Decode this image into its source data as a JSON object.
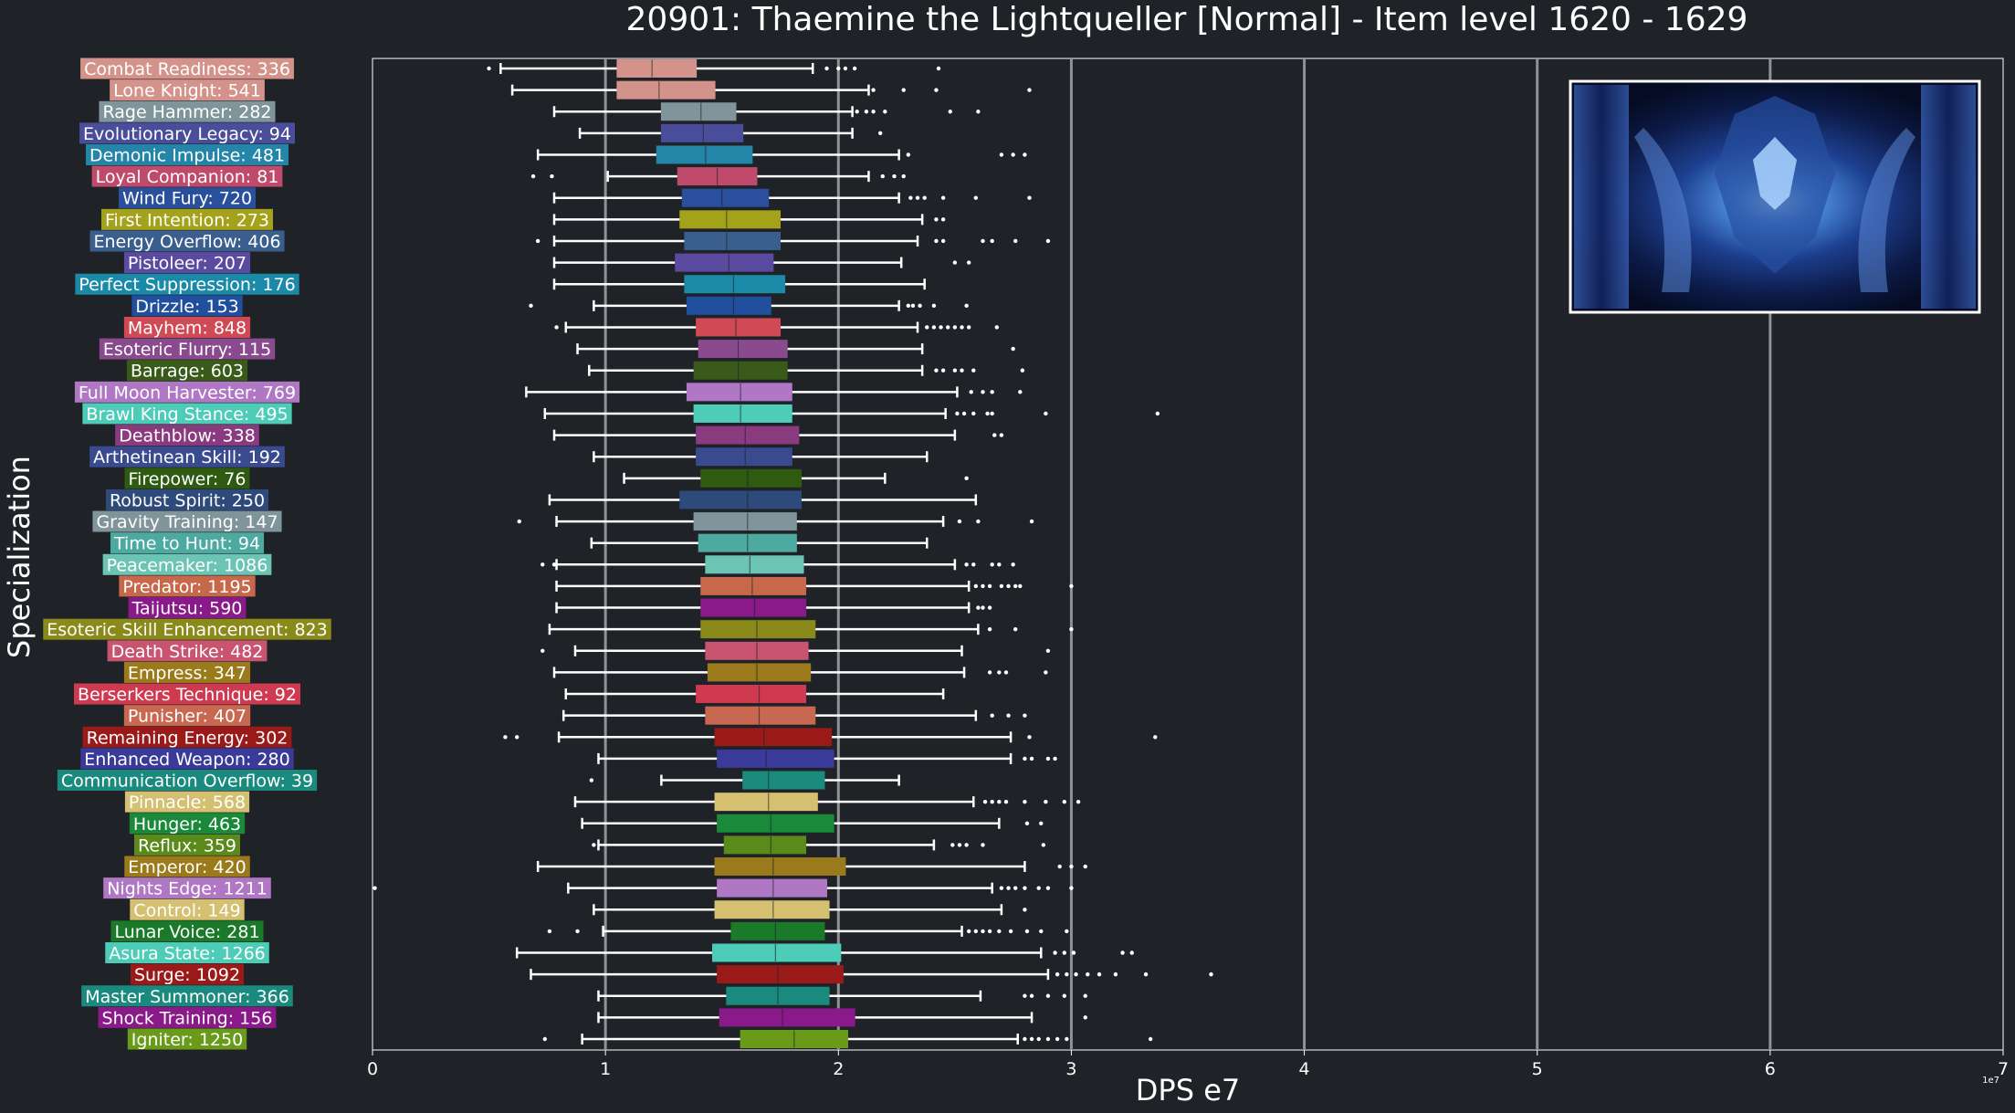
{
  "chart_data": {
    "type": "box",
    "title": "20901: Thaemine the Lightqueller [Normal] - Item level 1620 - 1629",
    "xlabel": "DPS e7",
    "ylabel": "Specialization",
    "x_multiplier_label": "1e7",
    "xlim": [
      0,
      7
    ],
    "xticks": [
      0,
      1,
      2,
      3,
      4,
      5,
      6,
      7
    ],
    "gridlines_x": [
      1,
      2,
      3,
      4,
      5,
      6
    ],
    "grid": "vertical",
    "colors": {
      "background": "#1f2227",
      "grid": "#8f9296",
      "text": "#ffffff",
      "whisker": "#ffffff"
    },
    "inset_image": {
      "description_icon": "boss-portrait-thumbnail",
      "position": "top-right"
    },
    "series": [
      {
        "name": "Combat Readiness",
        "count": 336,
        "label": "Combat Readiness: 336",
        "color": "#d4938a",
        "whislo": 0.55,
        "q1": 1.05,
        "med": 1.2,
        "q3": 1.39,
        "whishi": 1.89,
        "fliers": [
          0.5,
          1.95,
          2.0,
          2.03,
          2.07,
          2.43
        ]
      },
      {
        "name": "Lone Knight",
        "count": 541,
        "label": "Lone Knight: 541",
        "color": "#d4938a",
        "whislo": 0.6,
        "q1": 1.05,
        "med": 1.23,
        "q3": 1.47,
        "whishi": 2.13,
        "fliers": [
          2.15,
          2.28,
          2.42,
          2.82
        ]
      },
      {
        "name": "Rage Hammer",
        "count": 282,
        "label": "Rage Hammer: 282",
        "color": "#7f959b",
        "whislo": 0.78,
        "q1": 1.24,
        "med": 1.41,
        "q3": 1.56,
        "whishi": 2.06,
        "fliers": [
          2.08,
          2.12,
          2.15,
          2.2,
          2.48,
          2.6
        ]
      },
      {
        "name": "Evolutionary Legacy",
        "count": 94,
        "label": "Evolutionary Legacy: 94",
        "color": "#4a4d99",
        "whislo": 0.89,
        "q1": 1.24,
        "med": 1.42,
        "q3": 1.59,
        "whishi": 2.06,
        "fliers": [
          2.18
        ]
      },
      {
        "name": "Demonic Impulse",
        "count": 481,
        "label": "Demonic Impulse: 481",
        "color": "#2386a8",
        "whislo": 0.71,
        "q1": 1.22,
        "med": 1.43,
        "q3": 1.63,
        "whishi": 2.26,
        "fliers": [
          2.3,
          2.7,
          2.75,
          2.8
        ]
      },
      {
        "name": "Loyal Companion",
        "count": 81,
        "label": "Loyal Companion: 81",
        "color": "#c04a6c",
        "whislo": 1.01,
        "q1": 1.31,
        "med": 1.48,
        "q3": 1.65,
        "whishi": 2.13,
        "fliers": [
          0.69,
          0.77,
          2.19,
          2.24,
          2.28
        ]
      },
      {
        "name": "Wind Fury",
        "count": 720,
        "label": "Wind Fury: 720",
        "color": "#2a4f9d",
        "whislo": 0.78,
        "q1": 1.33,
        "med": 1.5,
        "q3": 1.7,
        "whishi": 2.26,
        "fliers": [
          2.31,
          2.34,
          2.37,
          2.45,
          2.59,
          2.82
        ]
      },
      {
        "name": "First Intention",
        "count": 273,
        "label": "First Intention: 273",
        "color": "#a4a21b",
        "whislo": 0.78,
        "q1": 1.32,
        "med": 1.52,
        "q3": 1.75,
        "whishi": 2.36,
        "fliers": [
          2.42,
          2.45
        ]
      },
      {
        "name": "Energy Overflow",
        "count": 406,
        "label": "Energy Overflow: 406",
        "color": "#3a5f8f",
        "whislo": 0.78,
        "q1": 1.34,
        "med": 1.52,
        "q3": 1.75,
        "whishi": 2.34,
        "fliers": [
          0.71,
          2.42,
          2.45,
          2.62,
          2.66,
          2.76,
          2.9
        ]
      },
      {
        "name": "Pistoleer",
        "count": 207,
        "label": "Pistoleer: 207",
        "color": "#5a4aa0",
        "whislo": 0.78,
        "q1": 1.3,
        "med": 1.53,
        "q3": 1.72,
        "whishi": 2.27,
        "fliers": [
          2.5,
          2.56
        ]
      },
      {
        "name": "Perfect Suppression",
        "count": 176,
        "label": "Perfect Suppression: 176",
        "color": "#1a8aa8",
        "whislo": 0.78,
        "q1": 1.34,
        "med": 1.55,
        "q3": 1.77,
        "whishi": 2.37,
        "fliers": []
      },
      {
        "name": "Drizzle",
        "count": 153,
        "label": "Drizzle: 153",
        "color": "#1f4f9d",
        "whislo": 0.95,
        "q1": 1.35,
        "med": 1.55,
        "q3": 1.71,
        "whishi": 2.26,
        "fliers": [
          0.68,
          2.3,
          2.32,
          2.35,
          2.41,
          2.55
        ]
      },
      {
        "name": "Mayhem",
        "count": 848,
        "label": "Mayhem: 848",
        "color": "#d04a55",
        "whislo": 0.83,
        "q1": 1.39,
        "med": 1.56,
        "q3": 1.75,
        "whishi": 2.34,
        "fliers": [
          0.79,
          2.38,
          2.41,
          2.44,
          2.47,
          2.5,
          2.53,
          2.56,
          2.68
        ]
      },
      {
        "name": "Esoteric Flurry",
        "count": 115,
        "label": "Esoteric Flurry: 115",
        "color": "#8a4a8e",
        "whislo": 0.88,
        "q1": 1.4,
        "med": 1.57,
        "q3": 1.78,
        "whishi": 2.36,
        "fliers": [
          2.75
        ]
      },
      {
        "name": "Barrage",
        "count": 603,
        "label": "Barrage: 603",
        "color": "#3a5a1a",
        "whislo": 0.93,
        "q1": 1.38,
        "med": 1.57,
        "q3": 1.78,
        "whishi": 2.36,
        "fliers": [
          2.42,
          2.45,
          2.5,
          2.53,
          2.58,
          2.79
        ]
      },
      {
        "name": "Full Moon Harvester",
        "count": 769,
        "label": "Full Moon Harvester: 769",
        "color": "#b077c4",
        "whislo": 0.66,
        "q1": 1.35,
        "med": 1.58,
        "q3": 1.8,
        "whishi": 2.51,
        "fliers": [
          2.57,
          2.62,
          2.66,
          2.78
        ]
      },
      {
        "name": "Brawl King Stance",
        "count": 495,
        "label": "Brawl King Stance: 495",
        "color": "#4dccb8",
        "whislo": 0.74,
        "q1": 1.38,
        "med": 1.58,
        "q3": 1.8,
        "whishi": 2.46,
        "fliers": [
          2.51,
          2.54,
          2.58,
          2.64,
          2.66,
          2.89,
          3.37
        ]
      },
      {
        "name": "Deathblow",
        "count": 338,
        "label": "Deathblow: 338",
        "color": "#8a3a7e",
        "whislo": 0.78,
        "q1": 1.39,
        "med": 1.6,
        "q3": 1.83,
        "whishi": 2.5,
        "fliers": [
          2.67,
          2.7
        ]
      },
      {
        "name": "Arthetinean Skill",
        "count": 192,
        "label": "Arthetinean Skill: 192",
        "color": "#3a4a8e",
        "whislo": 0.95,
        "q1": 1.39,
        "med": 1.6,
        "q3": 1.8,
        "whishi": 2.38,
        "fliers": []
      },
      {
        "name": "Firepower",
        "count": 76,
        "label": "Firepower: 76",
        "color": "#2e5a12",
        "whislo": 1.08,
        "q1": 1.41,
        "med": 1.61,
        "q3": 1.84,
        "whishi": 2.2,
        "fliers": [
          2.55
        ]
      },
      {
        "name": "Robust Spirit",
        "count": 250,
        "label": "Robust Spirit: 250",
        "color": "#2e4a7a",
        "whislo": 0.76,
        "q1": 1.32,
        "med": 1.61,
        "q3": 1.84,
        "whishi": 2.59,
        "fliers": []
      },
      {
        "name": "Gravity Training",
        "count": 147,
        "label": "Gravity Training: 147",
        "color": "#7f959b",
        "whislo": 0.79,
        "q1": 1.38,
        "med": 1.61,
        "q3": 1.82,
        "whishi": 2.45,
        "fliers": [
          0.63,
          2.52,
          2.6,
          2.83
        ]
      },
      {
        "name": "Time to Hunt",
        "count": 94,
        "label": "Time to Hunt: 94",
        "color": "#4daaa0",
        "whislo": 0.94,
        "q1": 1.4,
        "med": 1.61,
        "q3": 1.82,
        "whishi": 2.38,
        "fliers": []
      },
      {
        "name": "Peacemaker",
        "count": 1086,
        "label": "Peacemaker: 1086",
        "color": "#6cc4b4",
        "whislo": 0.79,
        "q1": 1.43,
        "med": 1.62,
        "q3": 1.85,
        "whishi": 2.5,
        "fliers": [
          0.73,
          0.78,
          2.55,
          2.58,
          2.66,
          2.69,
          2.75
        ]
      },
      {
        "name": "Predator",
        "count": 1195,
        "label": "Predator: 1195",
        "color": "#c8684a",
        "whislo": 0.79,
        "q1": 1.41,
        "med": 1.63,
        "q3": 1.86,
        "whishi": 2.56,
        "fliers": [
          2.59,
          2.62,
          2.65,
          2.7,
          2.73,
          2.76,
          2.78,
          3.0
        ]
      },
      {
        "name": "Taijutsu",
        "count": 590,
        "label": "Taijutsu: 590",
        "color": "#8a1a8a",
        "whislo": 0.79,
        "q1": 1.41,
        "med": 1.64,
        "q3": 1.86,
        "whishi": 2.56,
        "fliers": [
          2.6,
          2.62,
          2.65
        ]
      },
      {
        "name": "Esoteric Skill Enhancement",
        "count": 823,
        "label": "Esoteric Skill Enhancement: 823",
        "color": "#8a8a1a",
        "whislo": 0.76,
        "q1": 1.41,
        "med": 1.65,
        "q3": 1.9,
        "whishi": 2.6,
        "fliers": [
          2.65,
          2.76,
          3.0
        ]
      },
      {
        "name": "Death Strike",
        "count": 482,
        "label": "Death Strike: 482",
        "color": "#c85470",
        "whislo": 0.87,
        "q1": 1.43,
        "med": 1.65,
        "q3": 1.87,
        "whishi": 2.53,
        "fliers": [
          0.73,
          2.9
        ]
      },
      {
        "name": "Empress",
        "count": 347,
        "label": "Empress: 347",
        "color": "#9a7a1a",
        "whislo": 0.78,
        "q1": 1.44,
        "med": 1.65,
        "q3": 1.88,
        "whishi": 2.54,
        "fliers": [
          2.65,
          2.69,
          2.72,
          2.89
        ]
      },
      {
        "name": "Berserkers Technique",
        "count": 92,
        "label": "Berserkers Technique: 92",
        "color": "#d03a50",
        "whislo": 0.83,
        "q1": 1.39,
        "med": 1.66,
        "q3": 1.86,
        "whishi": 2.45,
        "fliers": []
      },
      {
        "name": "Punisher",
        "count": 407,
        "label": "Punisher: 407",
        "color": "#c86850",
        "whislo": 0.82,
        "q1": 1.43,
        "med": 1.66,
        "q3": 1.9,
        "whishi": 2.59,
        "fliers": [
          2.66,
          2.73,
          2.8
        ]
      },
      {
        "name": "Remaining Energy",
        "count": 302,
        "label": "Remaining Energy: 302",
        "color": "#9a1a1a",
        "whislo": 0.8,
        "q1": 1.47,
        "med": 1.68,
        "q3": 1.97,
        "whishi": 2.74,
        "fliers": [
          0.57,
          0.62,
          2.82,
          3.36
        ]
      },
      {
        "name": "Enhanced Weapon",
        "count": 280,
        "label": "Enhanced Weapon: 280",
        "color": "#3a3a9a",
        "whislo": 0.97,
        "q1": 1.48,
        "med": 1.69,
        "q3": 1.98,
        "whishi": 2.74,
        "fliers": [
          2.8,
          2.83,
          2.9,
          2.93
        ]
      },
      {
        "name": "Communication Overflow",
        "count": 39,
        "label": "Communication Overflow: 39",
        "color": "#1a8a7e",
        "whislo": 1.24,
        "q1": 1.59,
        "med": 1.7,
        "q3": 1.94,
        "whishi": 2.26,
        "fliers": [
          0.94
        ]
      },
      {
        "name": "Pinnacle",
        "count": 568,
        "label": "Pinnacle: 568",
        "color": "#d4c070",
        "whislo": 0.87,
        "q1": 1.47,
        "med": 1.7,
        "q3": 1.91,
        "whishi": 2.58,
        "fliers": [
          2.63,
          2.66,
          2.69,
          2.72,
          2.8,
          2.89,
          2.97,
          3.03
        ]
      },
      {
        "name": "Hunger",
        "count": 463,
        "label": "Hunger: 463",
        "color": "#1a8a3a",
        "whislo": 0.9,
        "q1": 1.48,
        "med": 1.71,
        "q3": 1.98,
        "whishi": 2.69,
        "fliers": [
          2.81,
          2.87
        ]
      },
      {
        "name": "Reflux",
        "count": 359,
        "label": "Reflux: 359",
        "color": "#5a8a1a",
        "whislo": 0.97,
        "q1": 1.51,
        "med": 1.71,
        "q3": 1.86,
        "whishi": 2.41,
        "fliers": [
          0.95,
          2.49,
          2.52,
          2.55,
          2.62,
          2.88
        ]
      },
      {
        "name": "Emperor",
        "count": 420,
        "label": "Emperor: 420",
        "color": "#9a7a1a",
        "whislo": 0.71,
        "q1": 1.47,
        "med": 1.72,
        "q3": 2.03,
        "whishi": 2.8,
        "fliers": [
          2.95,
          3.0,
          3.06
        ]
      },
      {
        "name": "Nights Edge",
        "count": 1211,
        "label": "Nights Edge: 1211",
        "color": "#b077c4",
        "whislo": 0.84,
        "q1": 1.48,
        "med": 1.72,
        "q3": 1.95,
        "whishi": 2.66,
        "fliers": [
          0.01,
          2.7,
          2.73,
          2.76,
          2.8,
          2.86,
          2.9,
          3.0
        ]
      },
      {
        "name": "Control",
        "count": 149,
        "label": "Control: 149",
        "color": "#d4c070",
        "whislo": 0.95,
        "q1": 1.47,
        "med": 1.72,
        "q3": 1.96,
        "whishi": 2.7,
        "fliers": [
          2.8
        ]
      },
      {
        "name": "Lunar Voice",
        "count": 281,
        "label": "Lunar Voice: 281",
        "color": "#1a7a2a",
        "whislo": 0.99,
        "q1": 1.54,
        "med": 1.73,
        "q3": 1.94,
        "whishi": 2.53,
        "fliers": [
          0.76,
          0.88,
          2.56,
          2.59,
          2.62,
          2.65,
          2.69,
          2.74,
          2.81,
          2.87,
          2.98
        ]
      },
      {
        "name": "Asura State",
        "count": 1266,
        "label": "Asura State: 1266",
        "color": "#4dccb8",
        "whislo": 0.62,
        "q1": 1.46,
        "med": 1.73,
        "q3": 2.01,
        "whishi": 2.87,
        "fliers": [
          2.93,
          2.97,
          3.01,
          3.22,
          3.26
        ]
      },
      {
        "name": "Surge",
        "count": 1092,
        "label": "Surge: 1092",
        "color": "#9a1a1a",
        "whislo": 0.68,
        "q1": 1.48,
        "med": 1.74,
        "q3": 2.02,
        "whishi": 2.9,
        "fliers": [
          2.94,
          2.98,
          3.02,
          3.07,
          3.12,
          3.19,
          3.32,
          3.6
        ]
      },
      {
        "name": "Master Summoner",
        "count": 366,
        "label": "Master Summoner: 366",
        "color": "#1a8a7e",
        "whislo": 0.97,
        "q1": 1.52,
        "med": 1.74,
        "q3": 1.96,
        "whishi": 2.61,
        "fliers": [
          2.8,
          2.83,
          2.9,
          2.97,
          3.06
        ]
      },
      {
        "name": "Shock Training",
        "count": 156,
        "label": "Shock Training: 156",
        "color": "#8a1a8a",
        "whislo": 0.97,
        "q1": 1.49,
        "med": 1.76,
        "q3": 2.07,
        "whishi": 2.83,
        "fliers": [
          3.06
        ]
      },
      {
        "name": "Igniter",
        "count": 1250,
        "label": "Igniter: 1250",
        "color": "#6a9a1a",
        "whislo": 0.9,
        "q1": 1.58,
        "med": 1.81,
        "q3": 2.04,
        "whishi": 2.77,
        "fliers": [
          0.74,
          2.8,
          2.83,
          2.86,
          2.9,
          2.94,
          2.98,
          3.34
        ]
      }
    ]
  }
}
